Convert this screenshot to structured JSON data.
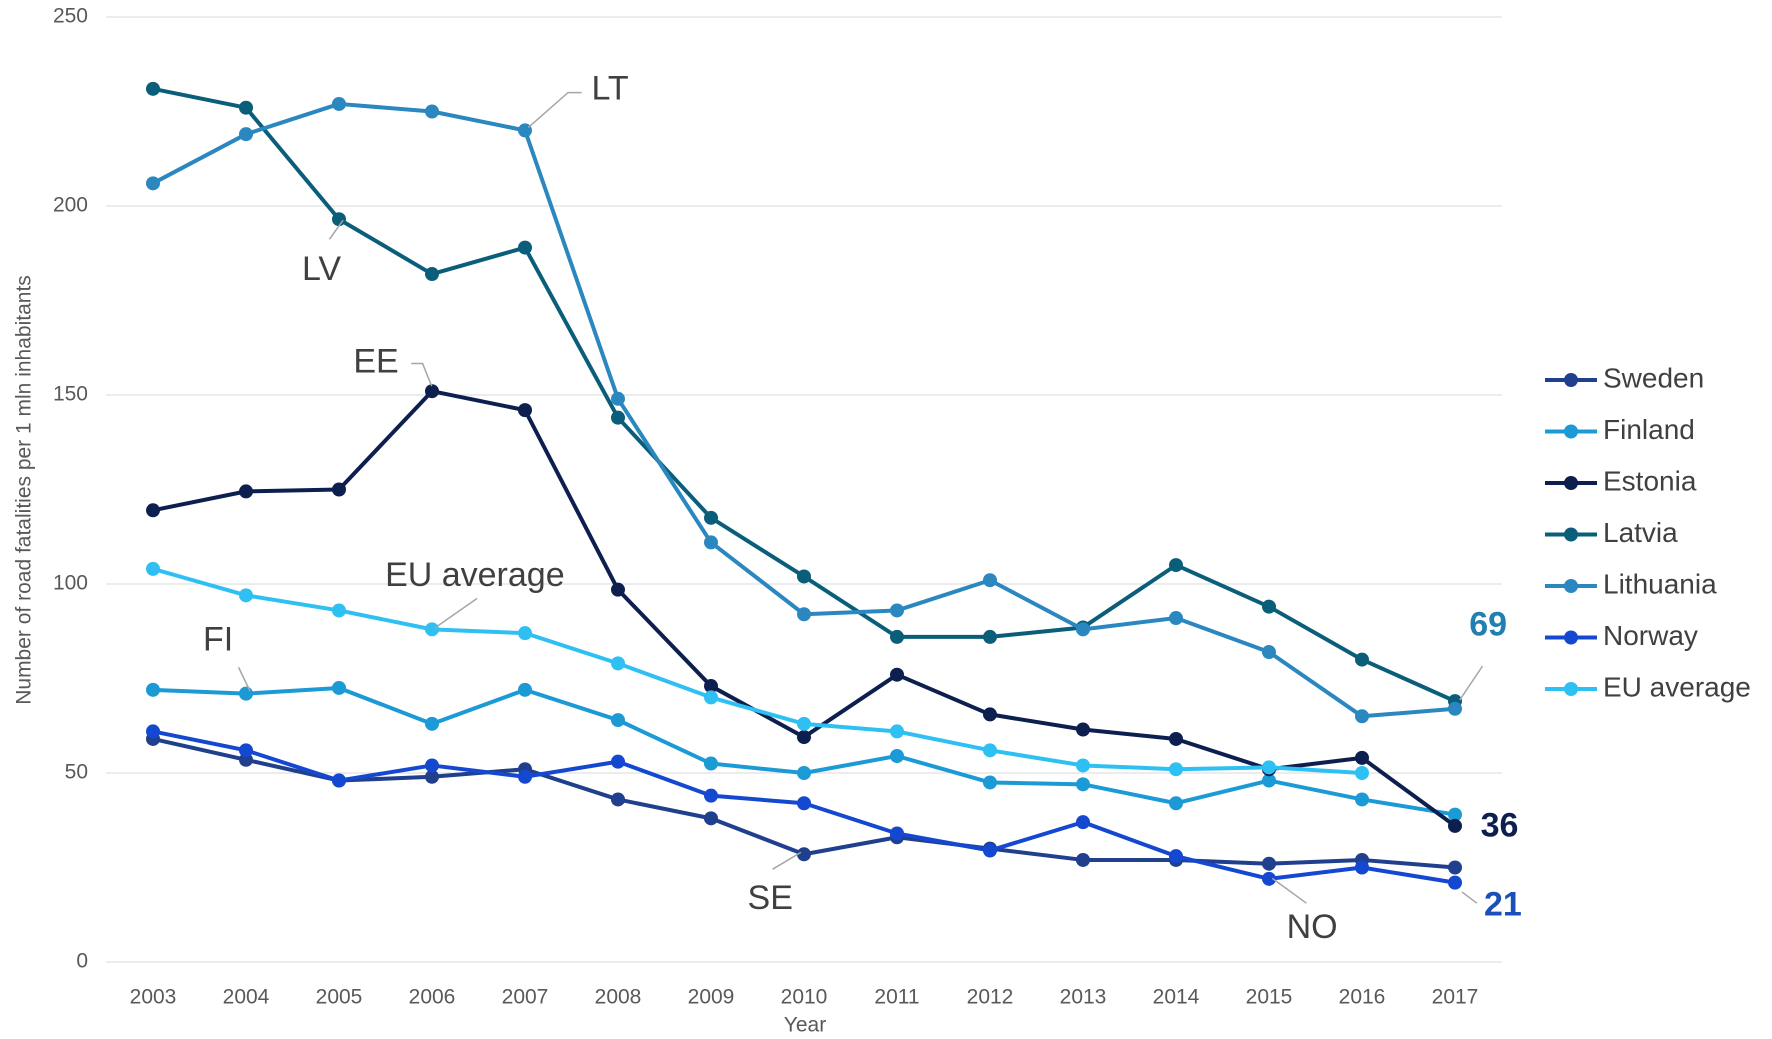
{
  "chart_data": {
    "type": "line",
    "x_label": "Year",
    "y_label": "Number of road fatalities per 1 mln inhabitants",
    "categories": [
      "2003",
      "2004",
      "2005",
      "2006",
      "2007",
      "2008",
      "2009",
      "2010",
      "2011",
      "2012",
      "2013",
      "2014",
      "2015",
      "2016",
      "2017"
    ],
    "ylim": [
      0,
      250
    ],
    "yticks": [
      0,
      50,
      100,
      150,
      200,
      250
    ],
    "grid": true,
    "legend": "right",
    "series": [
      {
        "name": "Sweden",
        "color": "#203f8c",
        "values": [
          59,
          53.5,
          48,
          49,
          51,
          43,
          38,
          28.5,
          33,
          30,
          27,
          27,
          26,
          27,
          25
        ]
      },
      {
        "name": "Finland",
        "color": "#1c9ad6",
        "values": [
          72,
          71,
          72.5,
          63,
          72,
          64,
          52.5,
          50,
          54.5,
          47.5,
          47,
          42,
          48,
          43,
          39
        ]
      },
      {
        "name": "Estonia",
        "color": "#0d1f4f",
        "values": [
          119.5,
          124.5,
          125,
          151,
          146,
          98.5,
          73,
          59.5,
          76,
          65.5,
          61.5,
          59,
          51,
          54,
          36
        ]
      },
      {
        "name": "Latvia",
        "color": "#0b5e7a",
        "values": [
          231,
          226,
          196.5,
          182,
          189,
          144,
          117.5,
          102,
          86,
          86,
          88.5,
          105,
          94,
          80,
          69
        ]
      },
      {
        "name": "Lithuania",
        "color": "#2b87bf",
        "values": [
          206,
          219,
          227,
          225,
          220,
          149,
          111,
          92,
          93,
          101,
          88,
          91,
          82,
          65,
          67
        ]
      },
      {
        "name": "Norway",
        "color": "#1448d1",
        "values": [
          61,
          56,
          48,
          52,
          49,
          53,
          44,
          42,
          34,
          29.5,
          37,
          28,
          22,
          25,
          21
        ]
      },
      {
        "name": "EU average",
        "color": "#2ec0f2",
        "values": [
          104,
          97,
          93,
          88,
          87,
          79,
          70,
          63,
          61,
          56,
          52,
          51,
          51.5,
          50,
          null
        ]
      }
    ],
    "annotations": [
      "LT",
      "LV",
      "EE",
      "EU average",
      "FI",
      "SE",
      "NO"
    ]
  }
}
